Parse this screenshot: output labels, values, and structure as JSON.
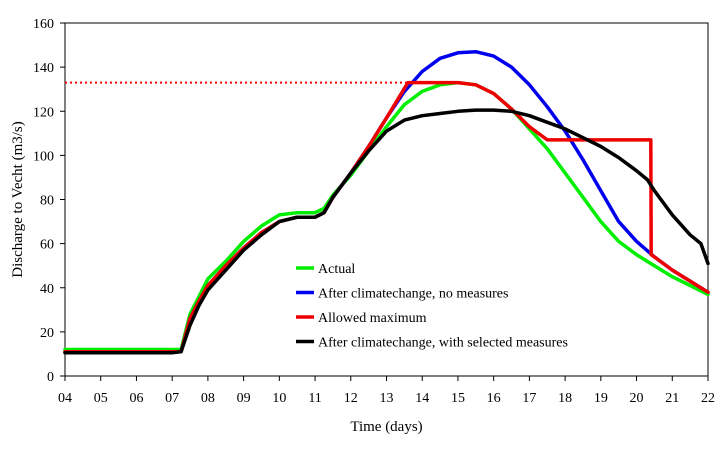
{
  "chart_data": {
    "type": "line",
    "xlabel": "Time (days)",
    "ylabel": "Discharge to Vecht (m3/s)",
    "xlim": [
      4,
      22
    ],
    "ylim": [
      0,
      160
    ],
    "x_ticks": [
      4,
      5,
      6,
      7,
      8,
      9,
      10,
      11,
      12,
      13,
      14,
      15,
      16,
      17,
      18,
      19,
      20,
      21,
      22
    ],
    "x_tick_labels": [
      "04",
      "05",
      "06",
      "07",
      "08",
      "09",
      "10",
      "11",
      "12",
      "13",
      "14",
      "15",
      "16",
      "17",
      "18",
      "19",
      "20",
      "21",
      "22"
    ],
    "y_ticks": [
      0,
      20,
      40,
      60,
      80,
      100,
      120,
      140,
      160
    ],
    "y_tick_labels": [
      "0",
      "20",
      "40",
      "60",
      "80",
      "100",
      "120",
      "140",
      "160"
    ],
    "grid": false,
    "legend_position": "inside-bottom-right",
    "reference_line": {
      "y": 133,
      "x_range": [
        4,
        13.7
      ],
      "color": "#ff0000",
      "style": "dotted"
    },
    "series": [
      {
        "name": "Actual",
        "color": "#00ee00",
        "points": [
          [
            4,
            12
          ],
          [
            5,
            12
          ],
          [
            6,
            12
          ],
          [
            7,
            12
          ],
          [
            7.25,
            12
          ],
          [
            7.5,
            28
          ],
          [
            7.75,
            36
          ],
          [
            8,
            44
          ],
          [
            8.5,
            52
          ],
          [
            9,
            61
          ],
          [
            9.5,
            68
          ],
          [
            10,
            73
          ],
          [
            10.5,
            74
          ],
          [
            11,
            74
          ],
          [
            11.25,
            76
          ],
          [
            11.5,
            82
          ],
          [
            12,
            91
          ],
          [
            12.5,
            102
          ],
          [
            13,
            113
          ],
          [
            13.5,
            123
          ],
          [
            14,
            129
          ],
          [
            14.5,
            132
          ],
          [
            15,
            133
          ],
          [
            15.5,
            132
          ],
          [
            16,
            128
          ],
          [
            16.5,
            121
          ],
          [
            17,
            112
          ],
          [
            17.5,
            103
          ],
          [
            18,
            92
          ],
          [
            18.5,
            81
          ],
          [
            19,
            70
          ],
          [
            19.5,
            61
          ],
          [
            20,
            55
          ],
          [
            20.5,
            50
          ],
          [
            21,
            45
          ],
          [
            21.5,
            41
          ],
          [
            22,
            37
          ]
        ]
      },
      {
        "name": "After climatechange, no measures",
        "color": "#0000ee",
        "points": [
          [
            4,
            11
          ],
          [
            5,
            11
          ],
          [
            6,
            11
          ],
          [
            7,
            11
          ],
          [
            7.25,
            11
          ],
          [
            7.5,
            26
          ],
          [
            7.75,
            34
          ],
          [
            8,
            41
          ],
          [
            8.5,
            50
          ],
          [
            9,
            58
          ],
          [
            9.5,
            65
          ],
          [
            10,
            70
          ],
          [
            10.5,
            72
          ],
          [
            11,
            72
          ],
          [
            11.25,
            74
          ],
          [
            11.5,
            81
          ],
          [
            12,
            92
          ],
          [
            12.5,
            104
          ],
          [
            13,
            117
          ],
          [
            13.5,
            129
          ],
          [
            14,
            138
          ],
          [
            14.5,
            144
          ],
          [
            15,
            146.5
          ],
          [
            15.5,
            147
          ],
          [
            16,
            145
          ],
          [
            16.5,
            140
          ],
          [
            17,
            132
          ],
          [
            17.5,
            122
          ],
          [
            18,
            111
          ],
          [
            18.5,
            98
          ],
          [
            19,
            84
          ],
          [
            19.5,
            70
          ],
          [
            20,
            61
          ],
          [
            20.5,
            54
          ],
          [
            21,
            48
          ],
          [
            21.5,
            43
          ],
          [
            22,
            38
          ]
        ]
      },
      {
        "name": "Allowed maximum",
        "color": "#ee0000",
        "points": [
          [
            4,
            11
          ],
          [
            5,
            11
          ],
          [
            6,
            11
          ],
          [
            7,
            11
          ],
          [
            7.25,
            11
          ],
          [
            7.5,
            26
          ],
          [
            7.75,
            34
          ],
          [
            8,
            41
          ],
          [
            8.5,
            50
          ],
          [
            9,
            58
          ],
          [
            9.5,
            65
          ],
          [
            10,
            70
          ],
          [
            10.5,
            72
          ],
          [
            11,
            72
          ],
          [
            11.25,
            74
          ],
          [
            11.5,
            81
          ],
          [
            12,
            92
          ],
          [
            12.5,
            104
          ],
          [
            13,
            117
          ],
          [
            13.6,
            133
          ],
          [
            14,
            133
          ],
          [
            14.5,
            133
          ],
          [
            15,
            133
          ],
          [
            15.5,
            132
          ],
          [
            16,
            128
          ],
          [
            16.5,
            121
          ],
          [
            17,
            113
          ],
          [
            17.5,
            107
          ],
          [
            17.7,
            107
          ],
          [
            18,
            107
          ],
          [
            18.5,
            107
          ],
          [
            19,
            107
          ],
          [
            19.5,
            107
          ],
          [
            20,
            107
          ],
          [
            20.4,
            107
          ],
          [
            20.41,
            55
          ],
          [
            20.5,
            54
          ],
          [
            21,
            48
          ],
          [
            21.5,
            43
          ],
          [
            22,
            38
          ]
        ]
      },
      {
        "name": "After climatechange, with selected measures",
        "color": "#000000",
        "points": [
          [
            4,
            10.5
          ],
          [
            5,
            10.5
          ],
          [
            6,
            10.5
          ],
          [
            7,
            10.5
          ],
          [
            7.25,
            11
          ],
          [
            7.5,
            23
          ],
          [
            7.75,
            32
          ],
          [
            8,
            39
          ],
          [
            8.5,
            48
          ],
          [
            9,
            57
          ],
          [
            9.5,
            64
          ],
          [
            10,
            70
          ],
          [
            10.5,
            72
          ],
          [
            11,
            72
          ],
          [
            11.25,
            74
          ],
          [
            11.5,
            81
          ],
          [
            12,
            92
          ],
          [
            12.5,
            102
          ],
          [
            13,
            111
          ],
          [
            13.5,
            116
          ],
          [
            14,
            118
          ],
          [
            14.5,
            119
          ],
          [
            15,
            120
          ],
          [
            15.5,
            120.5
          ],
          [
            16,
            120.5
          ],
          [
            16.5,
            120
          ],
          [
            17,
            118
          ],
          [
            17.5,
            115
          ],
          [
            18,
            112
          ],
          [
            18.5,
            108
          ],
          [
            19,
            104
          ],
          [
            19.5,
            99
          ],
          [
            20,
            93
          ],
          [
            20.3,
            89
          ],
          [
            20.5,
            84
          ],
          [
            21,
            73
          ],
          [
            21.5,
            64
          ],
          [
            21.8,
            60
          ],
          [
            22,
            51
          ]
        ]
      }
    ]
  }
}
